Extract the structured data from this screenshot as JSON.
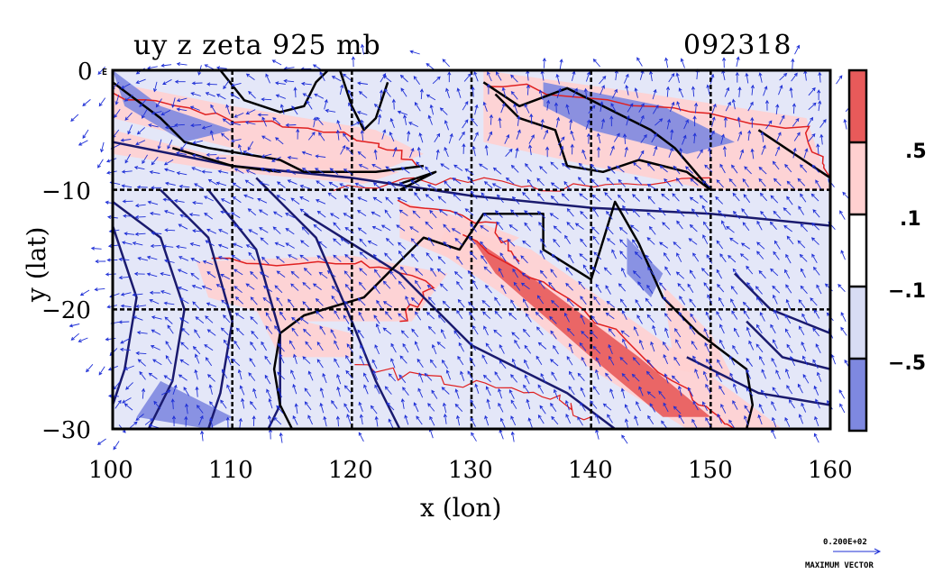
{
  "title": "uy z zeta 925 mb",
  "timestamp": "092318",
  "x_axis": {
    "label": "x (lon)",
    "ticks": [
      "100",
      "110",
      "120",
      "130",
      "140",
      "150",
      "160"
    ],
    "range": [
      100,
      160
    ]
  },
  "y_axis": {
    "label": "y (lat)",
    "ticks": [
      "0",
      "−10",
      "−20",
      "−30"
    ],
    "range": [
      -30,
      0
    ]
  },
  "colorbar": {
    "labels": [
      ".5",
      ".1",
      "−.1",
      "−.5"
    ],
    "colors": [
      "#e85a5a",
      "#ffd0d0",
      "#ffffff",
      "#d8dcf4",
      "#7e88e0"
    ]
  },
  "vector_legend": {
    "value": "0.200E+02",
    "label": "MAXIMUM VECTOR"
  },
  "colors": {
    "vectors": "#1e2fd6",
    "pos_contour": "#e02020",
    "neg_contour": "#1a1a6e",
    "coast": "#000000"
  },
  "corner_mark": "E"
}
